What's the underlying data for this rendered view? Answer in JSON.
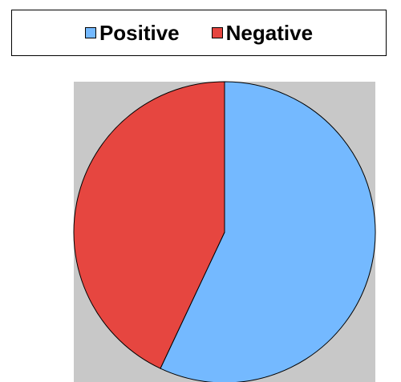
{
  "chart_data": {
    "type": "pie",
    "categories": [
      "Positive",
      "Negative"
    ],
    "values": [
      57,
      43
    ],
    "colors": [
      "#74b9ff",
      "#e64640"
    ],
    "legend_position": "top",
    "plot_background": "#c8c8c8",
    "start_angle": "12 o'clock",
    "direction": "clockwise"
  }
}
